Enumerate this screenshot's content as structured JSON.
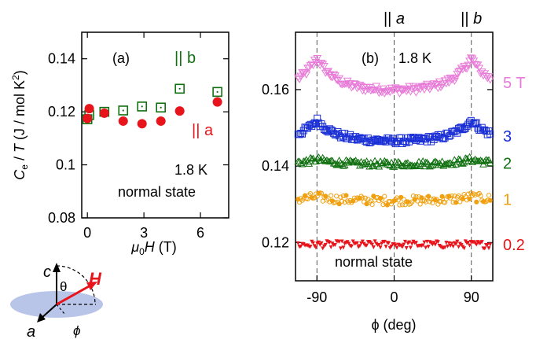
{
  "colors": {
    "red": "#e8141c",
    "green": "#107010",
    "blue": "#1a2fd6",
    "orange": "#f0a010",
    "pink": "#e87ad8",
    "black": "#000000",
    "ellipse": "#b8c4e8"
  },
  "chart_data": [
    {
      "panel": "(a)",
      "type": "scatter",
      "ylabel": "C_e / T (J / mol K^2)",
      "ylabel_parts": {
        "C": "C",
        "sub": "e",
        "slashT": " / ",
        "T": "T",
        "units": " (J / mol K",
        "sup": "2",
        "close": ")"
      },
      "xlabel_parts": {
        "mu": "μ",
        "sub": "0",
        "H": "H",
        "units": " (T)"
      },
      "xlim": [
        -0.3,
        7.5
      ],
      "ylim": [
        0.08,
        0.15
      ],
      "xticks": [
        0,
        3,
        6
      ],
      "yticks": [
        0.08,
        0.1,
        0.12,
        0.14
      ],
      "ytick_labels": [
        "0.08",
        "0.1",
        "0.12",
        "0.14"
      ],
      "annotations": {
        "temperature": "1.8 K",
        "state": "normal state",
        "label_b": "|| b",
        "label_a": "|| a"
      },
      "series": [
        {
          "name": "|| a",
          "marker": "filled-circle",
          "color": "red",
          "x": [
            0,
            0.1,
            0.9,
            1.9,
            2.9,
            3.9,
            4.9,
            6.9
          ],
          "y": [
            0.1175,
            0.1212,
            0.1195,
            0.1165,
            0.1155,
            0.1165,
            0.1203,
            0.1237
          ]
        },
        {
          "name": "|| b",
          "marker": "open-square",
          "color": "green",
          "x": [
            0,
            0.1,
            0.9,
            1.9,
            2.9,
            3.9,
            4.9,
            6.9
          ],
          "y": [
            0.1172,
            0.1188,
            0.12,
            0.1205,
            0.122,
            0.1216,
            0.1287,
            0.1275
          ]
        }
      ]
    },
    {
      "panel": "(b)",
      "type": "scatter",
      "xlabel": "ϕ (deg)",
      "xlim": [
        -115,
        115
      ],
      "ylim": [
        0.11,
        0.175
      ],
      "xticks": [
        -90,
        0,
        90
      ],
      "xtick_labels": [
        "-90",
        "0",
        "90"
      ],
      "yticks": [
        0.12,
        0.14,
        0.16
      ],
      "ytick_labels": [
        "0.12",
        "0.14",
        "0.16"
      ],
      "top_labels": [
        {
          "x": 0,
          "text": "|| a"
        },
        {
          "x": 90,
          "text": "|| b"
        }
      ],
      "annotations": {
        "temperature": "1.8 K",
        "state": "normal state"
      },
      "series": [
        {
          "name": "5 T",
          "color": "pink",
          "marker": "open-triangle-down",
          "base": 0.1597,
          "amp": 0.0085,
          "noise": 0.0012
        },
        {
          "name": "3",
          "color": "blue",
          "marker": "open-square",
          "base": 0.1465,
          "amp": 0.0055,
          "noise": 0.001
        },
        {
          "name": "2",
          "color": "green",
          "marker": "open-triangle-up",
          "base": 0.1405,
          "amp": 0.0012,
          "noise": 0.001
        },
        {
          "name": "1",
          "color": "orange",
          "marker": "open-circle",
          "base": 0.131,
          "amp": 0.001,
          "noise": 0.0015
        },
        {
          "name": "0.2",
          "color": "red",
          "marker": "filled-triangle-down",
          "base": 0.1195,
          "amp": 0.0,
          "noise": 0.0012
        }
      ]
    }
  ],
  "inset": {
    "c": "c",
    "theta": "θ",
    "H": "H",
    "a": "a",
    "phi": "ϕ"
  }
}
